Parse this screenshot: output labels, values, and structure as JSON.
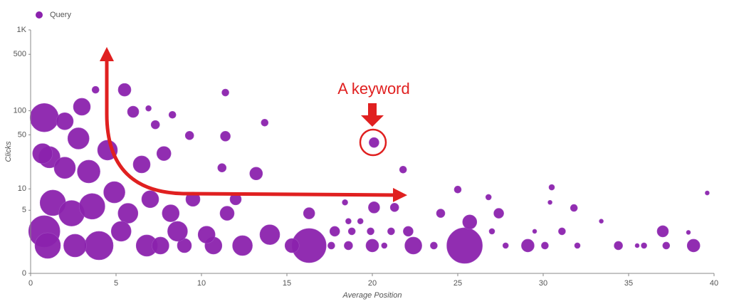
{
  "chart_data": {
    "type": "bubble",
    "xlabel": "Average Position",
    "ylabel": "Clicks",
    "xlim": [
      0,
      40
    ],
    "xticks": [
      0,
      5,
      10,
      15,
      20,
      25,
      30,
      35,
      40
    ],
    "ylim": [
      0,
      1000
    ],
    "yticks": [
      0,
      5,
      10,
      50,
      100,
      500,
      {
        "value": 1000,
        "label": "1K"
      }
    ],
    "log_scale": true,
    "grid": false,
    "legend": "top-left",
    "annotations": [
      {
        "text": "A keyword",
        "color": "#e02020"
      }
    ],
    "series": [
      {
        "name": "Query",
        "color": "#8b22ad",
        "x": [
          0.8,
          1.0,
          4.0,
          6.8,
          16.3,
          25.4,
          22.4,
          20.0,
          29.1,
          38.8,
          37.0,
          25.7,
          0.8,
          1.1,
          1.3,
          2.4,
          3.6,
          4.9,
          6.5,
          2.8,
          2.0,
          3.0,
          5.5,
          3.8,
          6.0,
          7.6,
          9.0,
          10.7,
          12.4,
          14.0,
          8.6,
          8.2,
          7.0,
          7.8,
          10.3,
          11.5,
          16.3,
          15.3,
          20.1,
          21.8,
          11.4,
          11.4,
          13.7,
          13.2,
          11.2,
          9.3,
          8.3,
          7.3,
          6.9,
          24.0,
          25.0,
          20.1,
          21.3,
          26.8,
          27.4,
          30.5,
          30.4,
          31.8,
          33.4,
          31.1,
          34.4,
          35.9,
          37.2,
          39.6,
          38.5,
          35.5,
          30.1,
          32.0,
          17.8,
          18.8,
          19.9,
          21.1,
          22.1,
          23.6,
          20.7,
          18.6,
          17.6,
          18.6,
          19.3,
          18.4,
          27.8,
          27.0,
          29.5,
          4.5,
          3.4,
          5.7,
          9.5,
          12.0,
          2.6,
          5.3,
          2.0,
          0.7
        ],
        "y": [
          2.3,
          1.2,
          1.2,
          1.2,
          1.2,
          1.2,
          1.2,
          1.2,
          1.2,
          1.2,
          2.3,
          3.3,
          82,
          26,
          6.4,
          4.5,
          5.7,
          9,
          21,
          45,
          19,
          112,
          182,
          182,
          97,
          1.2,
          1.2,
          1.2,
          1.2,
          2.0,
          2.3,
          4.5,
          7.2,
          29,
          2.0,
          4.5,
          4.5,
          1.2,
          40,
          18,
          168,
          48,
          71,
          16,
          19,
          49,
          89,
          67,
          107,
          4.5,
          9.8,
          5.5,
          5.5,
          7.7,
          4.5,
          10.5,
          6.5,
          5.4,
          3.4,
          2.3,
          1.2,
          1.2,
          1.2,
          8.8,
          2.2,
          1.2,
          1.2,
          1.2,
          2.3,
          2.3,
          2.3,
          2.3,
          2.3,
          1.2,
          1.2,
          1.2,
          1.2,
          3.4,
          3.4,
          6.5,
          1.2,
          2.3,
          2.3,
          32,
          17,
          4.5,
          7.2,
          7.2,
          1.2,
          2.3,
          74,
          29
        ],
        "sizes": [
          22,
          18,
          20,
          15,
          24,
          25,
          12,
          9,
          9,
          9,
          8,
          10,
          20,
          15,
          18,
          18,
          18,
          15,
          12,
          15,
          15,
          12,
          9,
          5,
          8,
          12,
          10,
          12,
          14,
          14,
          14,
          12,
          12,
          10,
          12,
          10,
          8,
          10,
          7,
          5,
          5,
          7,
          5,
          9,
          6,
          6,
          5,
          6,
          4,
          6,
          5,
          8,
          6,
          4,
          7,
          4,
          3,
          5,
          3,
          5,
          6,
          4,
          5,
          3,
          3,
          3,
          5,
          4,
          7,
          5,
          5,
          5,
          7,
          5,
          4,
          6,
          5,
          4,
          4,
          4,
          4,
          4,
          3,
          14,
          16,
          14,
          10,
          8,
          16,
          14,
          12,
          14
        ]
      }
    ]
  }
}
